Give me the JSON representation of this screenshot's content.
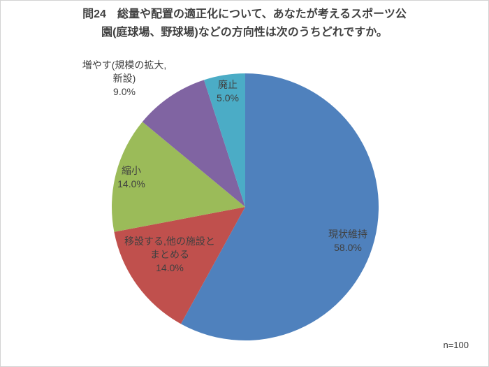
{
  "header": {
    "title_lines": [
      "問24　総量や配置の適正化について、あなたが考えるスポーツ公",
      "園(庭球場、野球場)などの方向性は次のうちどれですか。"
    ]
  },
  "chart_data": {
    "type": "pie",
    "title": "問24 総量や配置の適正化について、あなたが考えるスポーツ公園(庭球場、野球場)などの方向性は次のうちどれですか。",
    "labels": [
      "現状維持",
      "移設する,他の施設とまとめる",
      "縮小",
      "増やす(規模の拡大,新設)",
      "廃止"
    ],
    "values": [
      58.0,
      14.0,
      14.0,
      9.0,
      5.0
    ],
    "unit": "%",
    "colors": [
      "#4F81BD",
      "#C0504D",
      "#9BBB59",
      "#8064A2",
      "#4BACC6"
    ],
    "slice_names": [
      "maintain",
      "relocate-merge",
      "reduce",
      "increase-new",
      "abolish"
    ],
    "start_angle_deg": 0,
    "direction": "clockwise",
    "legend": "none",
    "sample_note": "n=100",
    "text_color": "#404040"
  },
  "slice_labels": [
    {
      "lines": [
        "現状維持"
      ],
      "pct": "58.0%"
    },
    {
      "lines": [
        "移設する,他の施設と",
        "まとめる"
      ],
      "pct": "14.0%"
    },
    {
      "lines": [
        "縮小"
      ],
      "pct": "14.0%"
    },
    {
      "lines": [
        "増やす(規模の拡大,",
        "新設)"
      ],
      "pct": "9.0%"
    },
    {
      "lines": [
        "廃止"
      ],
      "pct": "5.0%"
    }
  ],
  "footer": {
    "n_label": "n=100"
  }
}
